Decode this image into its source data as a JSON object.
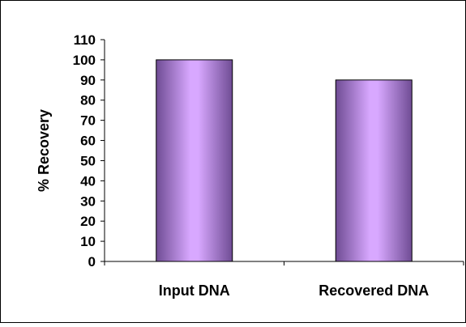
{
  "chart_data": {
    "type": "bar",
    "title": "",
    "xlabel": "",
    "ylabel": "% Recovery",
    "categories": [
      "Input DNA",
      "Recovered DNA"
    ],
    "values": [
      100,
      90
    ],
    "ylim": [
      0,
      110
    ],
    "yticks": [
      "0",
      "10",
      "20",
      "30",
      "40",
      "50",
      "60",
      "70",
      "80",
      "90",
      "100",
      "110"
    ],
    "grid": false,
    "legend": "none",
    "colors": {
      "bar_edge": "#5a3a7a",
      "bar_dark": "#6f4c94",
      "bar_light": "#d8a8ff",
      "axis": "#000000",
      "border": "#000000"
    }
  }
}
